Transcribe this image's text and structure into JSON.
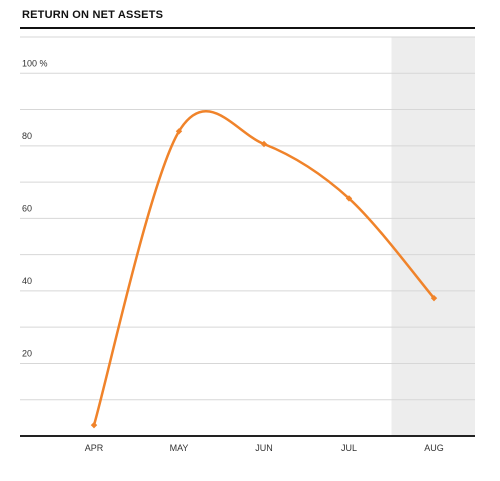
{
  "chart_data": {
    "type": "line",
    "title": "RETURN ON NET ASSETS",
    "xlabel": "",
    "ylabel": "",
    "categories": [
      "APR",
      "MAY",
      "JUN",
      "JUL",
      "AUG"
    ],
    "series": [
      {
        "values": [
          3,
          84,
          80.5,
          65.5,
          38
        ]
      }
    ],
    "ylim": [
      0,
      110
    ],
    "y_ticks": [
      20,
      40,
      60,
      80,
      100
    ],
    "y_tick_labels": [
      "20",
      "40",
      "60",
      "80",
      "100 %"
    ],
    "grid": true,
    "highlighted_category": "AUG",
    "colors": {
      "line": "#f0832a",
      "grid": "#d7d7d7",
      "axis": "#222222",
      "highlight_band": "#ededed"
    }
  }
}
